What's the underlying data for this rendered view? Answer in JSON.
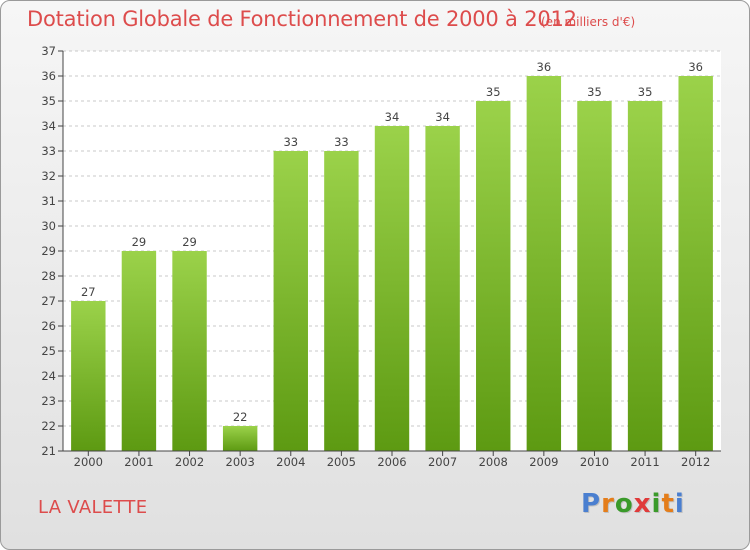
{
  "header": {
    "title": "Dotation Globale de Fonctionnement de 2000 à 2012",
    "unit": "(en milliers d'€)"
  },
  "footer": {
    "place": "LA VALETTE",
    "logo": "Proxiti"
  },
  "colors": {
    "title": "#dd4c4c",
    "bar_top": "#9bd24a",
    "bar_bottom": "#5d9a12",
    "axis": "#444444",
    "logo_letters": [
      "#4a7fd0",
      "#e47d1a",
      "#3a9a2a",
      "#e03a3a",
      "#3a9a2a",
      "#e47d1a",
      "#4a7fd0"
    ]
  },
  "chart_data": {
    "type": "bar",
    "title": "Dotation Globale de Fonctionnement de 2000 à 2012",
    "categories": [
      "2000",
      "2001",
      "2002",
      "2003",
      "2004",
      "2005",
      "2006",
      "2007",
      "2008",
      "2009",
      "2010",
      "2011",
      "2012"
    ],
    "values": [
      27,
      29,
      29,
      22,
      33,
      33,
      34,
      34,
      35,
      36,
      35,
      35,
      36
    ],
    "ylim": [
      21,
      37
    ],
    "yticks": [
      21,
      22,
      23,
      24,
      25,
      26,
      27,
      28,
      29,
      30,
      31,
      32,
      33,
      34,
      35,
      36,
      37
    ],
    "xlabel": "",
    "ylabel": "",
    "grid": true,
    "data_labels": true
  }
}
